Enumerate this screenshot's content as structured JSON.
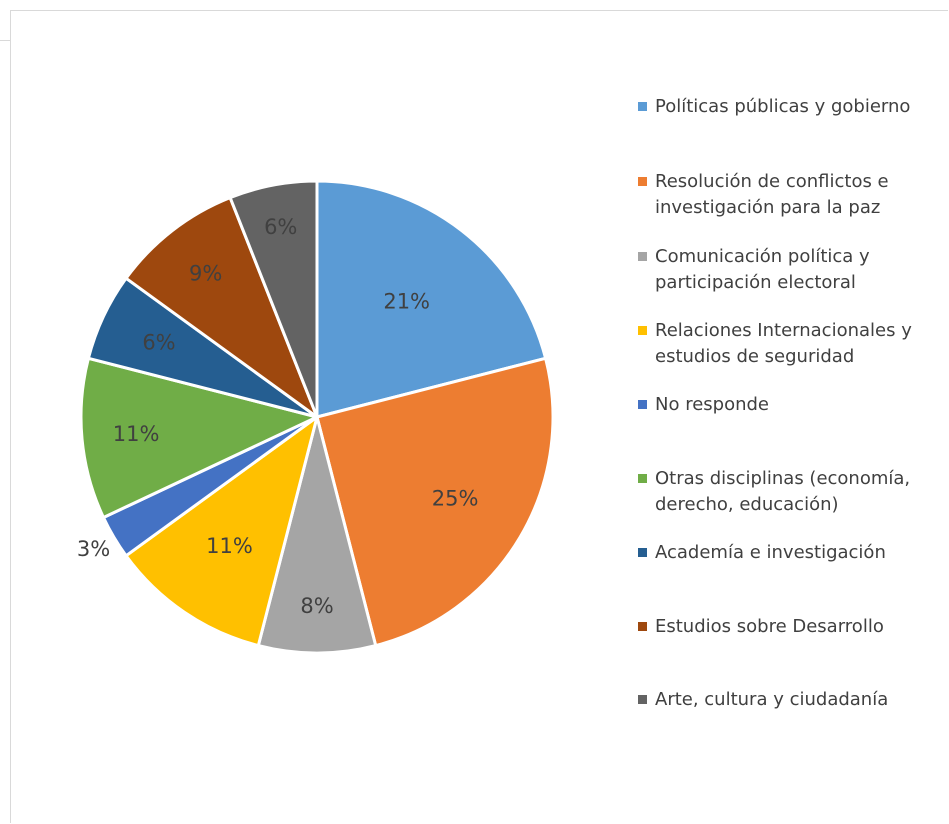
{
  "chart_data": {
    "type": "pie",
    "title": "",
    "slices": [
      {
        "label": "Políticas públicas y gobierno",
        "value": 21,
        "display": "21%",
        "color": "#5b9bd5"
      },
      {
        "label": "Resolución de conflictos e investigación para la paz",
        "value": 25,
        "display": "25%",
        "color": "#ed7d31"
      },
      {
        "label": "Comunicación política y participación electoral",
        "value": 8,
        "display": "8%",
        "color": "#a5a5a5"
      },
      {
        "label": "Relaciones Internacionales y estudios de seguridad",
        "value": 11,
        "display": "11%",
        "color": "#ffc000"
      },
      {
        "label": "No responde",
        "value": 3,
        "display": "3%",
        "color": "#4472c4"
      },
      {
        "label": "Otras disciplinas (economía, derecho, educación)",
        "value": 11,
        "display": "11%",
        "color": "#70ad47"
      },
      {
        "label": "Academía e investigación",
        "value": 6,
        "display": "6%",
        "color": "#255e91"
      },
      {
        "label": "Estudios sobre Desarrollo",
        "value": 9,
        "display": "9%",
        "color": "#9e480e"
      },
      {
        "label": "Arte, cultura y ciudadanía",
        "value": 6,
        "display": "6%",
        "color": "#636363"
      }
    ],
    "legend_position": "right",
    "label_color": "#404040"
  },
  "legend": {
    "items": [
      {
        "lines": [
          "Políticas públicas y gobierno"
        ]
      },
      {
        "lines": [
          "Resolución de conflictos e",
          "investigación para la paz"
        ]
      },
      {
        "lines": [
          "Comunicación política y",
          "participación electoral"
        ]
      },
      {
        "lines": [
          "Relaciones Internacionales y",
          "estudios de seguridad"
        ]
      },
      {
        "lines": [
          "No responde"
        ]
      },
      {
        "lines": [
          "Otras disciplinas (economía,",
          "derecho, educación)"
        ]
      },
      {
        "lines": [
          "Academía e investigación"
        ]
      },
      {
        "lines": [
          "Estudios sobre Desarrollo"
        ]
      },
      {
        "lines": [
          "Arte, cultura y ciudadanía"
        ]
      }
    ]
  }
}
